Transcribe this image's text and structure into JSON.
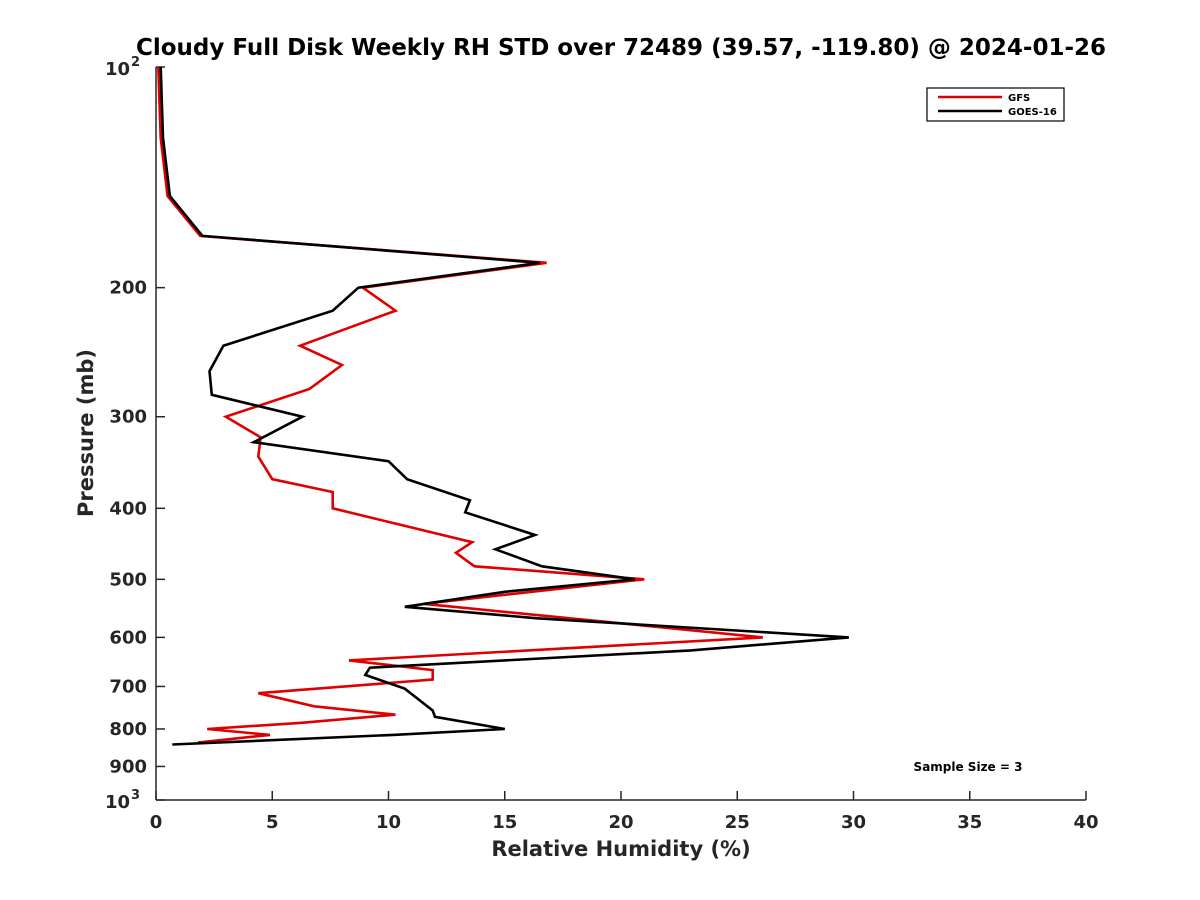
{
  "chart_data": {
    "type": "line",
    "title": "Cloudy Full Disk Weekly RH STD over 72489 (39.57, -119.80) @ 2024-01-26",
    "xlabel": "Relative Humidity (%)",
    "ylabel": "Pressure (mb)",
    "xlim": [
      0,
      40
    ],
    "ylim": [
      100,
      1000
    ],
    "y_scale": "log",
    "y_reversed": true,
    "x_ticks": [
      "0",
      "5",
      "10",
      "15",
      "20",
      "25",
      "30",
      "35",
      "40"
    ],
    "y_ticks": [
      {
        "value": 100,
        "base": "10",
        "exp": "2"
      },
      {
        "value": 200,
        "label": "200"
      },
      {
        "value": 300,
        "label": "300"
      },
      {
        "value": 400,
        "label": "400"
      },
      {
        "value": 500,
        "label": "500"
      },
      {
        "value": 600,
        "label": "600"
      },
      {
        "value": 700,
        "label": "700"
      },
      {
        "value": 800,
        "label": "800"
      },
      {
        "value": 900,
        "label": "900"
      },
      {
        "value": 1000,
        "base": "10",
        "exp": "3"
      }
    ],
    "grid": false,
    "legend_position": "top-right",
    "annotation": "Sample Size = 3",
    "series": [
      {
        "name": "GFS",
        "color": "#e00000",
        "x": [
          0.1,
          0.2,
          0.5,
          1.9,
          16.8,
          8.9,
          10.3,
          6.2,
          8.0,
          6.6,
          3.0,
          4.5,
          4.4,
          5.0,
          7.6,
          7.6,
          13.6,
          12.9,
          13.7,
          21.0,
          11.5,
          26.1,
          8.3,
          11.9,
          11.9,
          4.4,
          6.8,
          10.3,
          6.2,
          2.2,
          4.9,
          1.8
        ],
        "y": [
          100,
          125,
          150,
          170,
          185,
          200,
          215,
          240,
          255,
          275,
          300,
          320,
          340,
          365,
          380,
          400,
          445,
          460,
          480,
          500,
          540,
          600,
          645,
          665,
          685,
          715,
          745,
          765,
          785,
          800,
          815,
          835
        ]
      },
      {
        "name": "GOES-16",
        "color": "#000000",
        "x": [
          0.2,
          0.3,
          0.6,
          2.0,
          16.5,
          8.7,
          7.6,
          2.9,
          2.3,
          2.4,
          6.3,
          4.2,
          10.0,
          10.8,
          13.5,
          13.3,
          16.3,
          14.6,
          16.6,
          20.6,
          15.0,
          10.7,
          16.4,
          29.8,
          23.0,
          9.2,
          9.0,
          10.7,
          11.9,
          12.0,
          15.0,
          10.2,
          0.7
        ],
        "y": [
          100,
          125,
          150,
          170,
          185,
          200,
          215,
          240,
          260,
          280,
          300,
          325,
          345,
          365,
          390,
          405,
          435,
          455,
          480,
          500,
          520,
          545,
          565,
          600,
          625,
          660,
          675,
          705,
          755,
          770,
          800,
          815,
          840
        ]
      }
    ]
  }
}
